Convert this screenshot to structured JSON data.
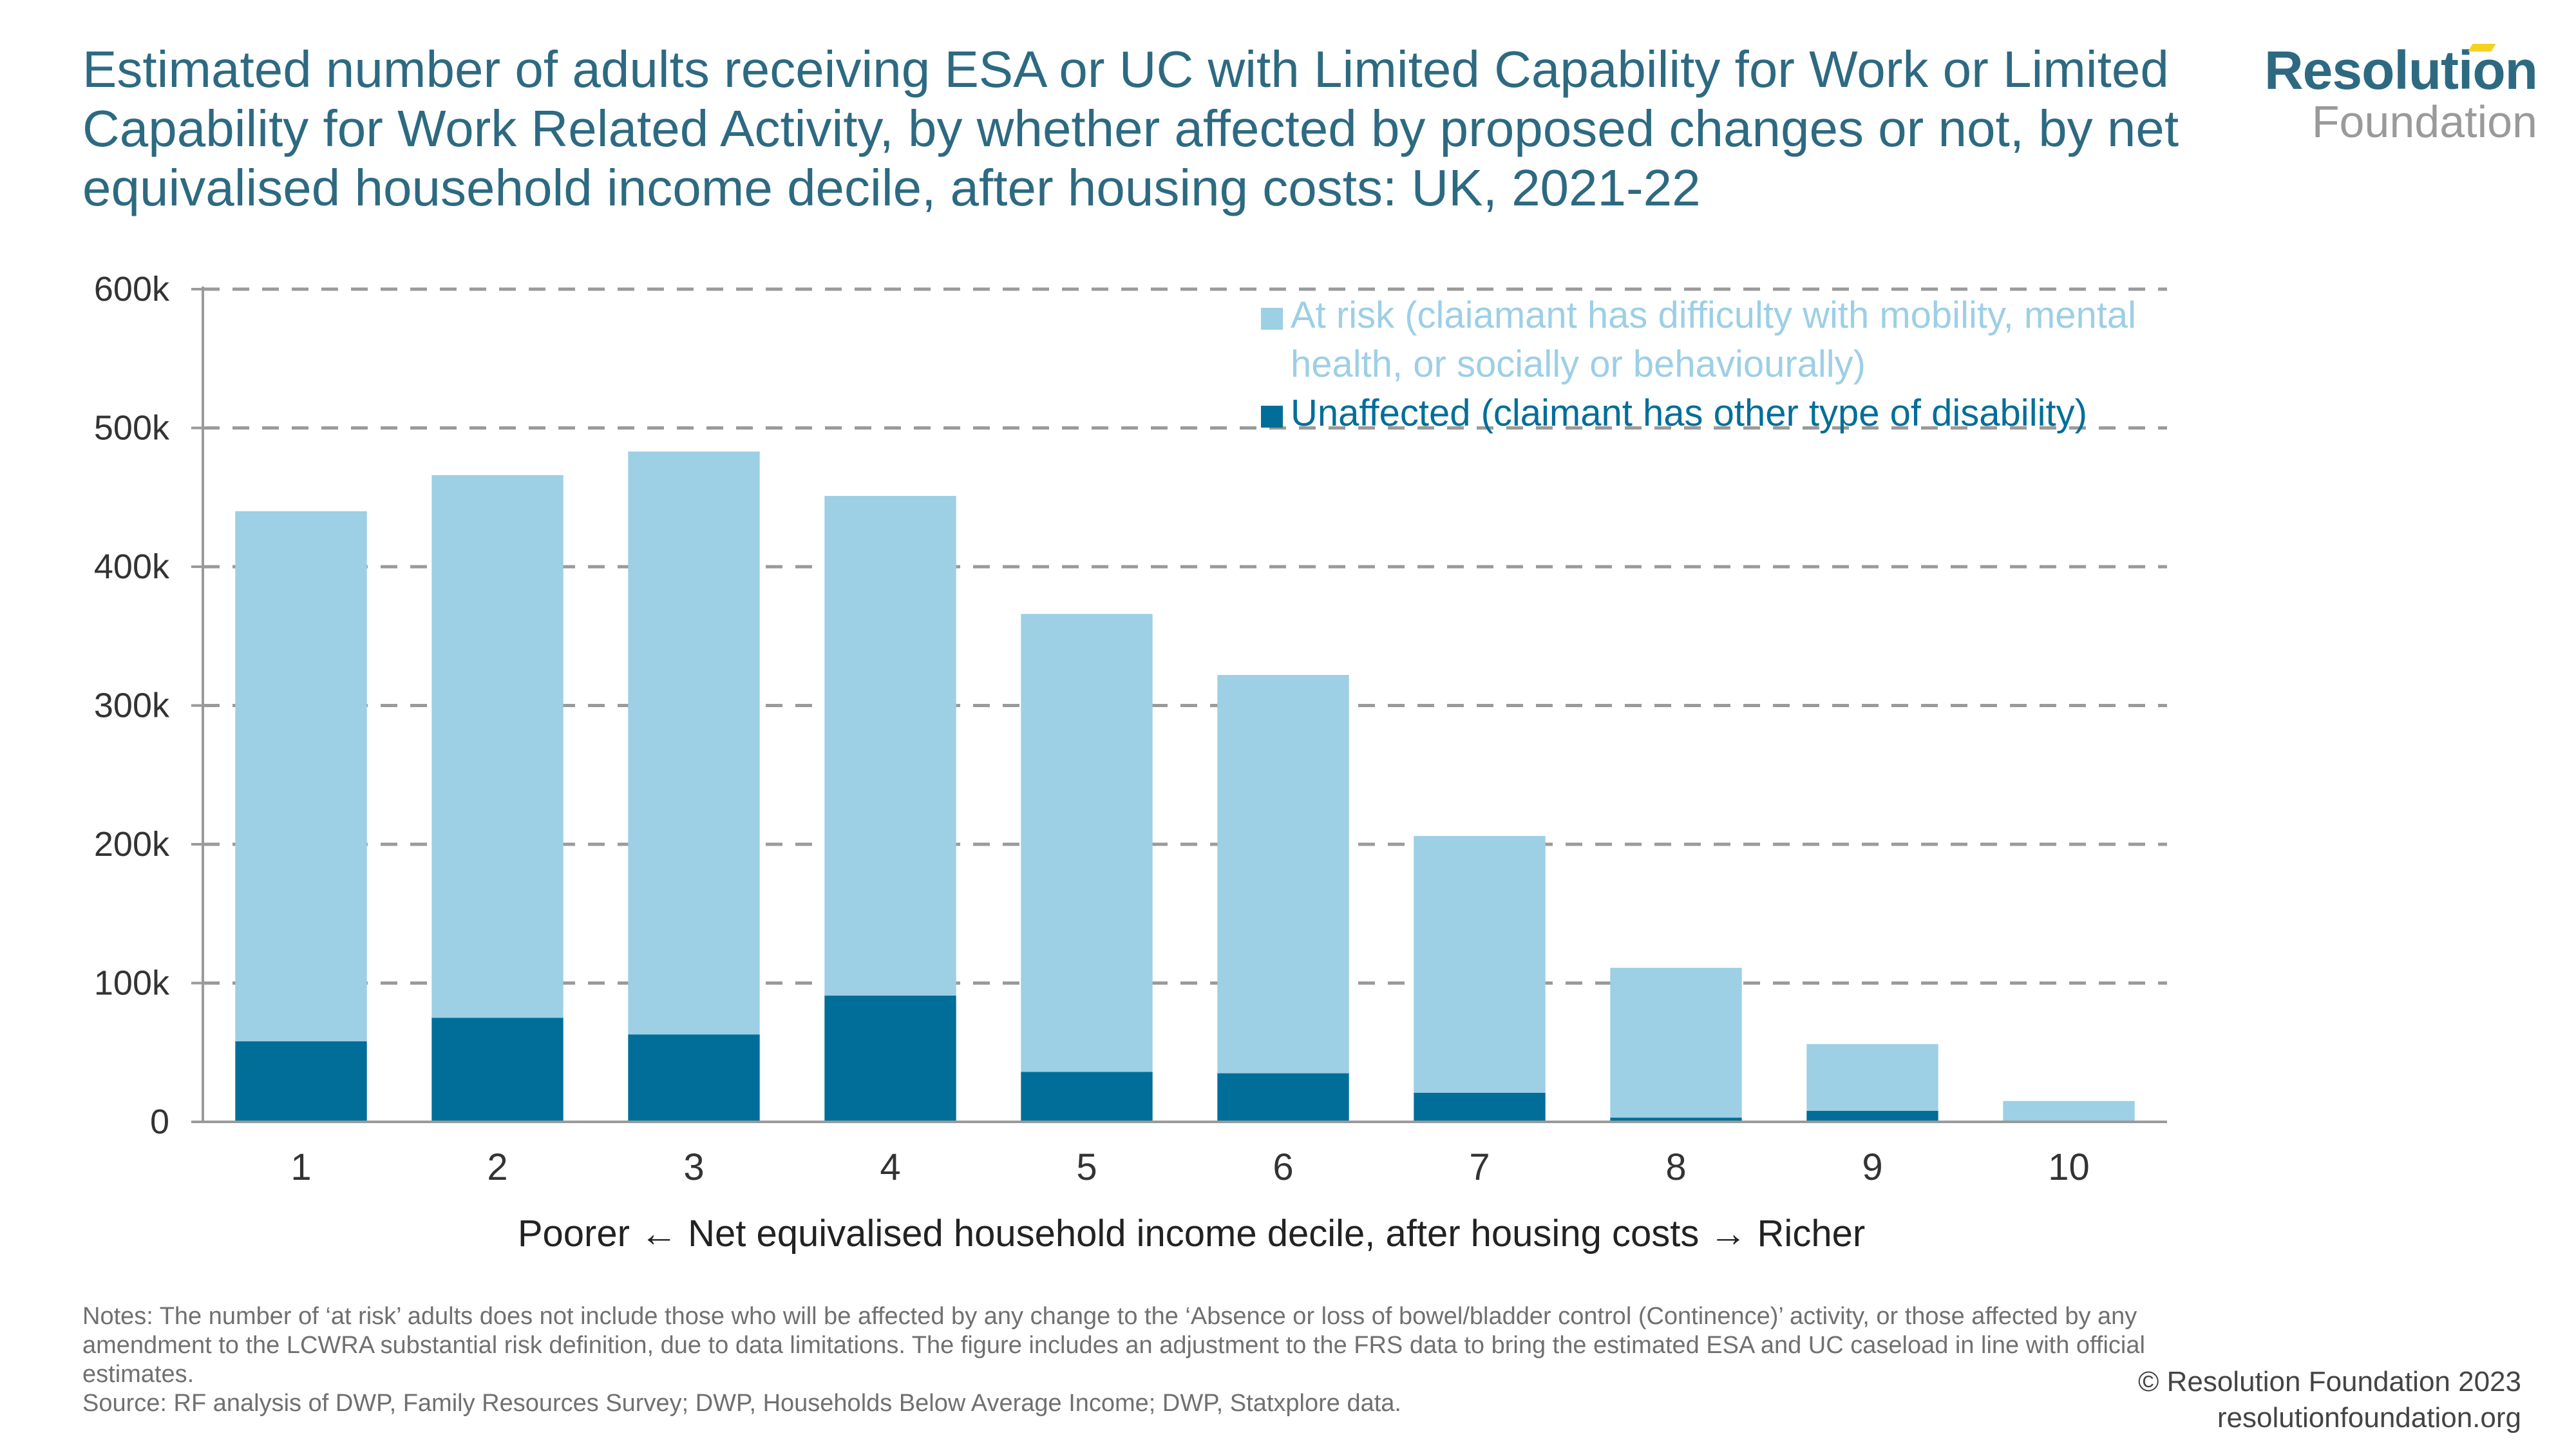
{
  "title": "Estimated number of adults receiving ESA or UC with Limited Capability for Work or Limited Capability for Work Related Activity, by whether affected by proposed changes or not, by net equivalised household income decile, after housing costs: UK, 2021-22",
  "logo": {
    "top": "Resolution",
    "bottom": "Foundation",
    "accent_color": "#f5d21f"
  },
  "legend": {
    "at_risk": "At risk (claiamant has difficulty with mobility, mental health, or socially or behaviourally)",
    "unaffected": "Unaffected (claimant has other type of disability)"
  },
  "notes": "Notes: The number of ‘at risk’ adults does not include those who will be affected by any change to the ‘Absence or loss of bowel/bladder control (Continence)’ activity, or those affected by any amendment to the LCWRA substantial risk definition, due to data limitations. The figure includes an adjustment to the FRS data to bring the estimated ESA and UC caseload in line with official estimates.",
  "source": "Source: RF analysis of DWP, Family Resources Survey; DWP, Households Below Average Income; DWP, Statxplore data.",
  "copyright": "© Resolution Foundation 2023",
  "website": "resolutionfoundation.org",
  "chart_data": {
    "type": "bar",
    "stacked": true,
    "title": "Estimated number of adults receiving ESA or UC with Limited Capability for Work or Limited Capability for Work Related Activity, by whether affected by proposed changes or not, by net equivalised household income decile, after housing costs: UK, 2021-22",
    "categories": [
      "1",
      "2",
      "3",
      "4",
      "5",
      "6",
      "7",
      "8",
      "9",
      "10"
    ],
    "series": [
      {
        "name": "Unaffected (claimant has other type of disability)",
        "color": "#006e99",
        "values": [
          58000,
          75000,
          63000,
          91000,
          36000,
          35000,
          21000,
          3000,
          8000,
          0
        ]
      },
      {
        "name": "At risk (claiamant has difficulty with mobility, mental health, or socially or behaviourally)",
        "color": "#9dcfe5",
        "values": [
          382000,
          391000,
          420000,
          360000,
          330000,
          287000,
          185000,
          108000,
          48000,
          15000
        ]
      }
    ],
    "totals": [
      440000,
      466000,
      483000,
      451000,
      366000,
      322000,
      206000,
      111000,
      56000,
      15000
    ],
    "xlabel": "Poorer ← Net equivalised household income decile, after housing costs → Richer",
    "ylabel": "",
    "ylim": [
      0,
      600000
    ],
    "yticks": [
      0,
      100000,
      200000,
      300000,
      400000,
      500000,
      600000
    ],
    "ytick_labels": [
      "0",
      "100k",
      "200k",
      "300k",
      "400k",
      "500k",
      "600k"
    ],
    "grid": true,
    "grid_style": "dashed",
    "legend_position": "top-right"
  }
}
